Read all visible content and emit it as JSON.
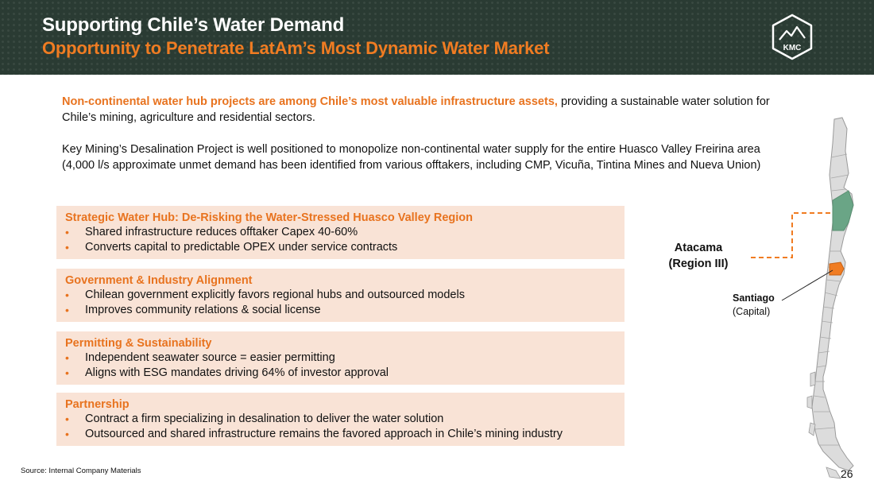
{
  "header": {
    "title": "Supporting Chile’s Water Demand",
    "subtitle": "Opportunity to Penetrate LatAm’s Most Dynamic Water Market",
    "logo_text": "KMC"
  },
  "intro": {
    "highlight": "Non-continental water hub projects are among Chile’s most valuable infrastructure assets,",
    "rest": " providing a sustainable water solution for Chile’s mining, agriculture and residential sectors.",
    "paragraph2": "Key Mining’s Desalination Project is well positioned to monopolize non-continental water supply for the entire Huasco Valley Freirina area (4,000 l/s approximate unmet demand has been identified from various offtakers, including CMP, Vicuña, Tintina Mines and Nueva Union)"
  },
  "boxes": [
    {
      "title": "Strategic Water Hub: De-Risking the Water-Stressed Huasco Valley Region",
      "bullets": [
        "Shared infrastructure reduces offtaker Capex 40-60%",
        "Converts capital to predictable OPEX under service contracts"
      ]
    },
    {
      "title": "Government & Industry Alignment",
      "bullets": [
        "Chilean government explicitly favors regional hubs and outsourced models",
        "Improves community relations & social license"
      ]
    },
    {
      "title": "Permitting & Sustainability",
      "bullets": [
        "Independent seawater source = easier permitting",
        "Aligns with ESG mandates driving 64% of investor approval"
      ]
    },
    {
      "title": "Partnership",
      "bullets": [
        "Contract a firm specializing in desalination to deliver the water solution",
        "Outsourced and shared infrastructure remains the favored approach in Chile’s mining industry"
      ]
    }
  ],
  "map": {
    "region_label_line1": "Atacama",
    "region_label_line2": "(Region III)",
    "capital_name": "Santiago",
    "capital_note": "(Capital)"
  },
  "colors": {
    "header_bg": "#2a3b33",
    "accent_orange": "#f07c22",
    "box_bg": "#f9e3d6",
    "region_green": "#6aa586"
  },
  "footer": {
    "source": "Source: Internal Company Materials",
    "page_number": "26"
  }
}
